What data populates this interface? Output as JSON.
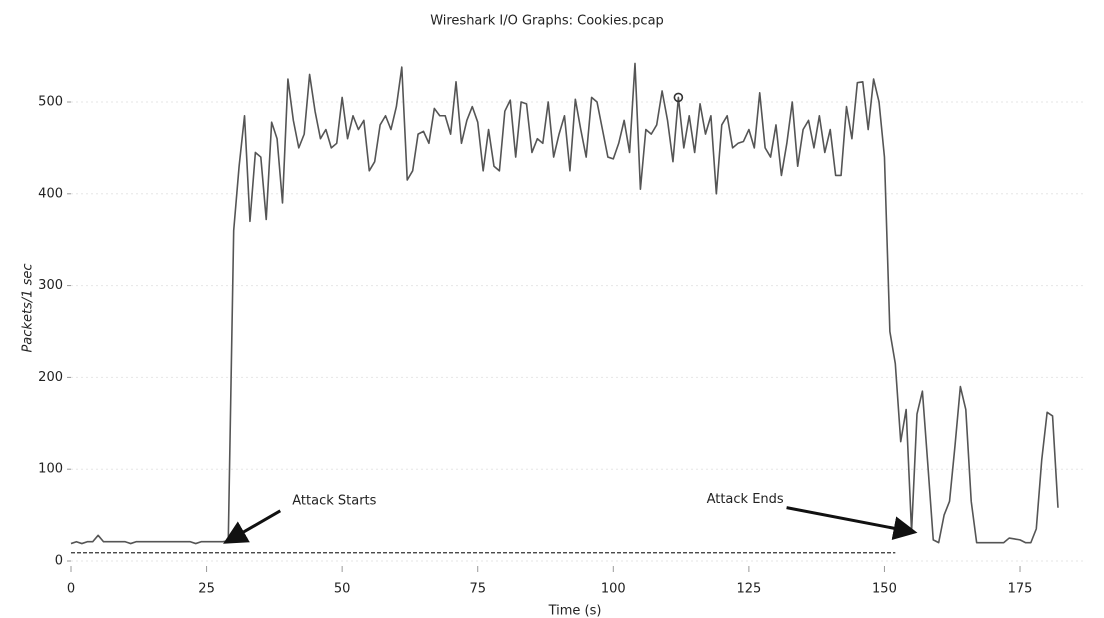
{
  "chart_data": {
    "type": "line",
    "title": "Wireshark I/O Graphs: Cookies.pcap",
    "x_label": "Time (s)",
    "y_label": "Packets/1 sec",
    "xlim": [
      0,
      187
    ],
    "ylim": [
      0,
      555
    ],
    "xticks": [
      0,
      25,
      50,
      75,
      100,
      125,
      150,
      175
    ],
    "yticks": [
      0,
      100,
      200,
      300,
      400,
      500
    ],
    "grid": true,
    "series": [
      {
        "color": "#555555",
        "style": "solid",
        "x": [
          0,
          1,
          2,
          3,
          4,
          5,
          6,
          7,
          8,
          9,
          10,
          11,
          12,
          13,
          14,
          15,
          16,
          17,
          18,
          19,
          20,
          21,
          22,
          23,
          24,
          25,
          26,
          27,
          28,
          29,
          30,
          31,
          32,
          33,
          34,
          35,
          36,
          37,
          38,
          39,
          40,
          41,
          42,
          43,
          44,
          45,
          46,
          47,
          48,
          49,
          50,
          51,
          52,
          53,
          54,
          55,
          56,
          57,
          58,
          59,
          60,
          61,
          62,
          63,
          64,
          65,
          66,
          67,
          68,
          69,
          70,
          71,
          72,
          73,
          74,
          75,
          76,
          77,
          78,
          79,
          80,
          81,
          82,
          83,
          84,
          85,
          86,
          87,
          88,
          89,
          90,
          91,
          92,
          93,
          94,
          95,
          96,
          97,
          98,
          99,
          100,
          101,
          102,
          103,
          104,
          105,
          106,
          107,
          108,
          109,
          110,
          111,
          112,
          113,
          114,
          115,
          116,
          117,
          118,
          119,
          120,
          121,
          122,
          123,
          124,
          125,
          126,
          127,
          128,
          129,
          130,
          131,
          132,
          133,
          134,
          135,
          136,
          137,
          138,
          139,
          140,
          141,
          142,
          143,
          144,
          145,
          146,
          147,
          148,
          149,
          150,
          151,
          152,
          153,
          154,
          155,
          156,
          157,
          158,
          159,
          160,
          161,
          162,
          163,
          164,
          165,
          166,
          167,
          168,
          169,
          170,
          171,
          172,
          173,
          174,
          175,
          176,
          177,
          178,
          179,
          180,
          181,
          182
        ],
        "values": [
          19,
          21,
          19,
          21,
          21,
          28,
          21,
          21,
          21,
          21,
          21,
          19,
          21,
          21,
          21,
          21,
          21,
          21,
          21,
          21,
          21,
          21,
          21,
          19,
          21,
          21,
          21,
          21,
          21,
          22,
          360,
          430,
          485,
          370,
          445,
          440,
          372,
          478,
          460,
          390,
          525,
          480,
          450,
          465,
          530,
          490,
          460,
          470,
          450,
          455,
          505,
          460,
          485,
          470,
          480,
          425,
          435,
          475,
          485,
          470,
          495,
          538,
          415,
          425,
          465,
          468,
          455,
          493,
          485,
          485,
          465,
          522,
          455,
          480,
          495,
          478,
          425,
          470,
          430,
          425,
          490,
          502,
          440,
          500,
          498,
          445,
          460,
          455,
          500,
          440,
          465,
          485,
          425,
          503,
          470,
          440,
          505,
          500,
          470,
          440,
          438,
          455,
          480,
          445,
          542,
          405,
          470,
          465,
          475,
          512,
          480,
          435,
          505,
          450,
          485,
          445,
          498,
          465,
          485,
          400,
          475,
          485,
          450,
          455,
          457,
          470,
          450,
          510,
          450,
          440,
          475,
          420,
          455,
          500,
          430,
          470,
          480,
          450,
          485,
          445,
          470,
          420,
          420,
          495,
          460,
          521,
          522,
          470,
          525,
          500,
          440,
          250,
          215,
          130,
          165,
          32,
          160,
          185,
          105,
          23,
          20,
          50,
          65,
          125,
          190,
          165,
          65,
          20,
          20,
          20,
          20,
          20,
          20,
          25,
          24,
          23,
          20,
          20,
          35,
          110,
          162,
          158,
          58
        ]
      },
      {
        "color": "#333333",
        "style": "dashed",
        "x": [
          0,
          152
        ],
        "values": [
          9,
          9
        ]
      }
    ],
    "marker_index": 112,
    "annotations": [
      {
        "text": "Attack Starts",
        "x": 29,
        "y": 22
      },
      {
        "text": "Attack Ends",
        "x": 155,
        "y": 32
      }
    ]
  }
}
